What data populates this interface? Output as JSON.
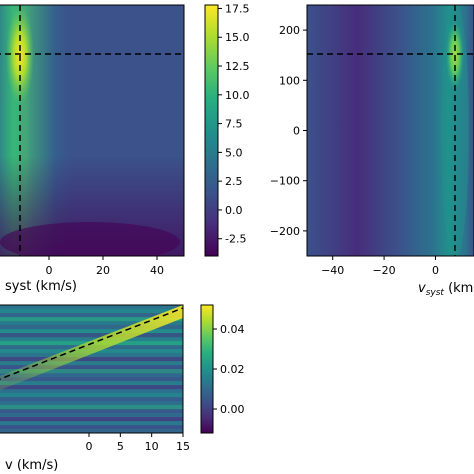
{
  "chart_data": [
    {
      "type": "heatmap",
      "panel": "top-left",
      "xlabel": "v_syst (km/s)",
      "xlabel_visible": "syst (km/s)",
      "x_ticks": [
        "0",
        "20",
        "40"
      ],
      "x_tick_values": [
        0,
        20,
        40
      ],
      "xlim": [
        -20,
        50
      ],
      "ylim": [
        -250,
        250
      ],
      "crosshair": {
        "x": -2,
        "y": 150
      },
      "colorbar": {
        "ticks": [
          "17.5",
          "15.0",
          "12.5",
          "10.0",
          "7.5",
          "5.0",
          "2.5",
          "0.0",
          "-2.5"
        ],
        "tick_values": [
          17.5,
          15.0,
          12.5,
          10.0,
          7.5,
          5.0,
          2.5,
          0.0,
          -2.5
        ],
        "range": [
          -4,
          17.8
        ]
      }
    },
    {
      "type": "heatmap",
      "panel": "top-right",
      "xlabel": "v_syst (km",
      "x_ticks": [
        "−40",
        "−20",
        "0"
      ],
      "x_tick_values": [
        -40,
        -20,
        0
      ],
      "y_ticks": [
        "200",
        "100",
        "0",
        "−100",
        "−200"
      ],
      "y_tick_values": [
        200,
        100,
        0,
        -100,
        -200
      ],
      "xlim": [
        -50,
        15
      ],
      "ylim": [
        -250,
        250
      ],
      "crosshair": {
        "x": -2,
        "y": 150
      }
    },
    {
      "type": "heatmap",
      "panel": "bottom-left",
      "xlabel": "v (km/s)",
      "xlabel_visible": "v (km/s)",
      "x_ticks": [
        "0",
        "5",
        "10",
        "15"
      ],
      "x_tick_values": [
        0,
        5,
        10,
        15
      ],
      "xlim": [
        -15,
        15
      ],
      "dashed_line": {
        "x": [
          -15,
          15
        ],
        "y_frac": [
          0.28,
          0.98
        ]
      },
      "colorbar": {
        "ticks": [
          "0.04",
          "0.02",
          "0.00"
        ],
        "tick_values": [
          0.04,
          0.02,
          0.0
        ],
        "range": [
          -0.012,
          0.052
        ]
      }
    }
  ],
  "colors": {
    "viridis": [
      "#440154",
      "#472d7b",
      "#3b528b",
      "#2c728e",
      "#21918c",
      "#28ae80",
      "#5ec962",
      "#addc30",
      "#fde725"
    ]
  }
}
